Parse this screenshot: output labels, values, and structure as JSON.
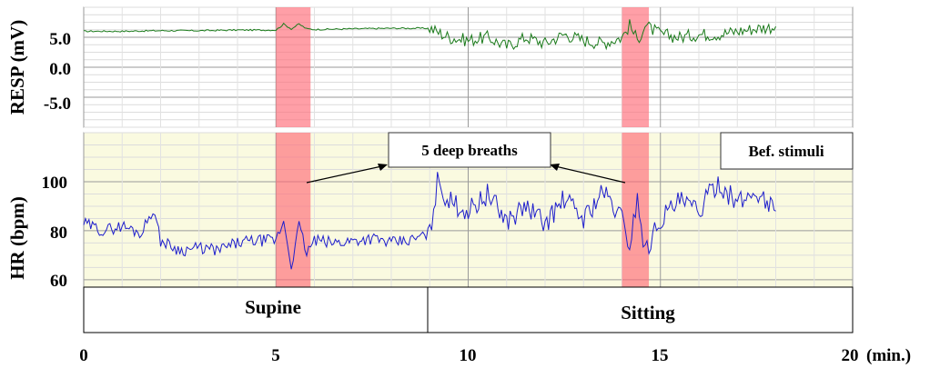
{
  "chart_data": [
    {
      "type": "line",
      "panel": "resp",
      "ylabel": "RESP (mV)",
      "ylim": [
        -10,
        10
      ],
      "yticks": [
        5.0,
        0.0,
        -5.0
      ],
      "ytick_labels": [
        "5.0",
        "0.0",
        "-5.0"
      ],
      "grid": true,
      "series": [
        {
          "color": "#1a7a1a",
          "x": [
            0,
            1,
            2,
            3,
            4,
            5,
            5.2,
            5.4,
            5.6,
            5.8,
            6,
            7,
            8,
            9,
            9.5,
            10,
            10.5,
            11,
            11.5,
            12,
            12.5,
            13,
            13.5,
            14,
            14.2,
            14.4,
            14.6,
            15,
            15.5,
            16,
            16.5,
            17,
            17.5,
            18
          ],
          "y": [
            6.0,
            6.0,
            6.1,
            6.1,
            6.2,
            6.2,
            7.2,
            6.4,
            7.2,
            6.4,
            6.3,
            6.4,
            6.5,
            6.5,
            5.0,
            4.5,
            5.0,
            3.5,
            5.0,
            4.0,
            5.5,
            4.5,
            4.0,
            5.0,
            7.0,
            4.5,
            7.0,
            5.5,
            5.0,
            5.5,
            5.5,
            6.0,
            6.5,
            6.8
          ]
        }
      ]
    },
    {
      "type": "line",
      "panel": "hr",
      "ylabel": "HR (bpm)",
      "ylim": [
        57,
        120
      ],
      "yticks": [
        100,
        80,
        60
      ],
      "ytick_labels": [
        "100",
        "80",
        "60"
      ],
      "xlabel": "(min.)",
      "xlim": [
        0,
        20
      ],
      "xticks": [
        0,
        5,
        10,
        15,
        20
      ],
      "xtick_labels": [
        "0",
        "5",
        "10",
        "15",
        "20"
      ],
      "grid": true,
      "series": [
        {
          "color": "#1f1fcc",
          "x": [
            0,
            0.5,
            1,
            1.5,
            1.8,
            2,
            2.5,
            3,
            3.5,
            4,
            4.5,
            5,
            5.2,
            5.4,
            5.6,
            5.8,
            6,
            6.5,
            7,
            7.5,
            8,
            8.5,
            9,
            9.2,
            9.5,
            10,
            10.5,
            11,
            11.5,
            12,
            12.5,
            13,
            13.5,
            14,
            14.2,
            14.4,
            14.6,
            15,
            15.5,
            16,
            16.5,
            17,
            17.5,
            18
          ],
          "y": [
            83,
            80,
            82,
            79,
            89,
            76,
            72,
            73,
            72,
            75,
            76,
            76,
            84,
            66,
            82,
            71,
            76,
            75,
            76,
            77,
            75,
            76,
            79,
            100,
            92,
            88,
            95,
            84,
            90,
            83,
            93,
            85,
            96,
            85,
            74,
            94,
            71,
            85,
            92,
            88,
            100,
            91,
            96,
            88
          ]
        }
      ]
    }
  ],
  "highlights": [
    {
      "x_start": 5.0,
      "x_end": 5.9,
      "color": "#ff6b78"
    },
    {
      "x_start": 14.0,
      "x_end": 14.7,
      "color": "#ff6b78"
    }
  ],
  "annotations": {
    "deep_breaths": "5 deep breaths",
    "bef_stimuli": "Bef. stimuli"
  },
  "phases": [
    {
      "label": "Supine",
      "x_start": 0,
      "x_end": 9
    },
    {
      "label": "Sitting",
      "x_start": 9,
      "x_end": 20
    }
  ],
  "colors": {
    "resp_line": "#1a7a1a",
    "hr_line": "#1f1fcc",
    "hr_background": "#fafae0",
    "highlight": "#ff6b78",
    "grid": "#bdbdbd"
  }
}
